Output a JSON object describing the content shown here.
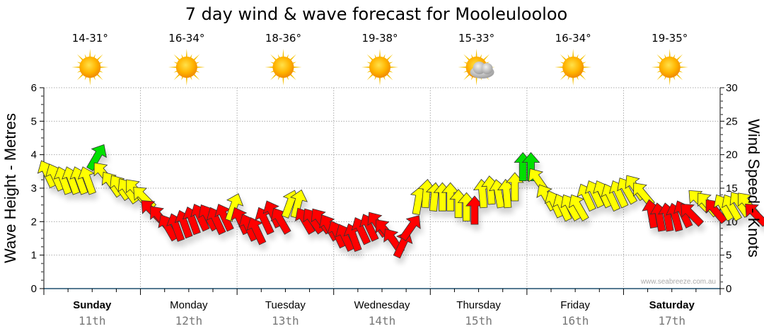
{
  "chart_data": {
    "type": "scatter",
    "title": "7 day wind & wave forecast for Mooleulooloo",
    "ylabel": "Wave Height - Metres",
    "y2label": "Wind Speed - Knots",
    "ylim": [
      0,
      6
    ],
    "y2lim": [
      0,
      30
    ],
    "yticks": [
      "0",
      "1",
      "2",
      "3",
      "4",
      "5",
      "6"
    ],
    "y2ticks": [
      "0",
      "5",
      "10",
      "15",
      "20",
      "25",
      "30"
    ],
    "grid": true,
    "credit": "www.seabreeze.com.au",
    "days": [
      {
        "day": "Sunday",
        "date": "11th",
        "temp": "14-31°",
        "icon": "sun-icon",
        "bold": true
      },
      {
        "day": "Monday",
        "date": "12th",
        "temp": "16-34°",
        "icon": "sun-icon",
        "bold": false
      },
      {
        "day": "Tuesday",
        "date": "13th",
        "temp": "18-36°",
        "icon": "sun-icon",
        "bold": false
      },
      {
        "day": "Wednesday",
        "date": "14th",
        "temp": "19-38°",
        "icon": "sun-icon",
        "bold": false
      },
      {
        "day": "Thursday",
        "date": "15th",
        "temp": "15-33°",
        "icon": "partly-cloudy-icon",
        "bold": false
      },
      {
        "day": "Friday",
        "date": "16th",
        "temp": "16-34°",
        "icon": "sun-icon",
        "bold": false
      },
      {
        "day": "Saturday",
        "date": "17th",
        "temp": "19-35°",
        "icon": "sun-icon",
        "bold": true
      }
    ],
    "series": [
      {
        "name": "Wind Speed (knots)",
        "x_unit": "hours from Sunday 00:00",
        "points": [
          {
            "x": 0,
            "kn": 17,
            "dir": -25
          },
          {
            "x": 2,
            "kn": 16.5,
            "dir": -25
          },
          {
            "x": 4,
            "kn": 16,
            "dir": -20
          },
          {
            "x": 6,
            "kn": 16,
            "dir": -20
          },
          {
            "x": 8,
            "kn": 16,
            "dir": -20
          },
          {
            "x": 10,
            "kn": 16,
            "dir": -20
          },
          {
            "x": 12,
            "kn": 19.5,
            "dir": 30
          },
          {
            "x": 14,
            "kn": 17,
            "dir": -40
          },
          {
            "x": 16,
            "kn": 15.5,
            "dir": -35
          },
          {
            "x": 18,
            "kn": 15,
            "dir": -35
          },
          {
            "x": 20,
            "kn": 14.5,
            "dir": -35
          },
          {
            "x": 22,
            "kn": 14.5,
            "dir": -40
          },
          {
            "x": 24,
            "kn": 13.5,
            "dir": -45
          },
          {
            "x": 26,
            "kn": 11.5,
            "dir": -45
          },
          {
            "x": 28,
            "kn": 10.5,
            "dir": -40
          },
          {
            "x": 30,
            "kn": 9,
            "dir": -30
          },
          {
            "x": 32,
            "kn": 9,
            "dir": -20
          },
          {
            "x": 34,
            "kn": 9.5,
            "dir": -20
          },
          {
            "x": 36,
            "kn": 10,
            "dir": -20
          },
          {
            "x": 38,
            "kn": 10.5,
            "dir": -25
          },
          {
            "x": 40,
            "kn": 10.5,
            "dir": -30
          },
          {
            "x": 42,
            "kn": 10,
            "dir": -25
          },
          {
            "x": 44,
            "kn": 10.5,
            "dir": -25
          },
          {
            "x": 46,
            "kn": 12,
            "dir": 20
          },
          {
            "x": 48,
            "kn": 10,
            "dir": -25
          },
          {
            "x": 50,
            "kn": 9,
            "dir": -25
          },
          {
            "x": 52,
            "kn": 8.5,
            "dir": -25
          },
          {
            "x": 54,
            "kn": 10,
            "dir": -25
          },
          {
            "x": 56,
            "kn": 11,
            "dir": -25
          },
          {
            "x": 58,
            "kn": 10,
            "dir": -30
          },
          {
            "x": 60,
            "kn": 12.5,
            "dir": 20
          },
          {
            "x": 62,
            "kn": 12.5,
            "dir": 15
          },
          {
            "x": 64,
            "kn": 10,
            "dir": -30
          },
          {
            "x": 66,
            "kn": 10,
            "dir": -35
          },
          {
            "x": 68,
            "kn": 10,
            "dir": -35
          },
          {
            "x": 70,
            "kn": 9,
            "dir": -30
          },
          {
            "x": 72,
            "kn": 8,
            "dir": -25
          },
          {
            "x": 74,
            "kn": 7.5,
            "dir": -25
          },
          {
            "x": 76,
            "kn": 7.5,
            "dir": -20
          },
          {
            "x": 78,
            "kn": 8.5,
            "dir": -25
          },
          {
            "x": 80,
            "kn": 9,
            "dir": -25
          },
          {
            "x": 82,
            "kn": 9.5,
            "dir": -35
          },
          {
            "x": 84,
            "kn": 8.5,
            "dir": -40
          },
          {
            "x": 86,
            "kn": 7,
            "dir": -35
          },
          {
            "x": 88,
            "kn": 6.5,
            "dir": 25
          },
          {
            "x": 90,
            "kn": 9,
            "dir": 35
          },
          {
            "x": 92,
            "kn": 13,
            "dir": 10
          },
          {
            "x": 94,
            "kn": 14,
            "dir": 5
          },
          {
            "x": 96,
            "kn": 13.5,
            "dir": 5
          },
          {
            "x": 98,
            "kn": 13.5,
            "dir": 0
          },
          {
            "x": 100,
            "kn": 13.5,
            "dir": 0
          },
          {
            "x": 102,
            "kn": 12.5,
            "dir": 0
          },
          {
            "x": 104,
            "kn": 12,
            "dir": 0
          },
          {
            "x": 106,
            "kn": 11.5,
            "dir": 0
          },
          {
            "x": 108,
            "kn": 14,
            "dir": -5
          },
          {
            "x": 110,
            "kn": 14.5,
            "dir": -5
          },
          {
            "x": 112,
            "kn": 14,
            "dir": -10
          },
          {
            "x": 114,
            "kn": 14,
            "dir": -5
          },
          {
            "x": 116,
            "kn": 15,
            "dir": 0
          },
          {
            "x": 118,
            "kn": 18,
            "dir": 0
          },
          {
            "x": 120,
            "kn": 18,
            "dir": 0
          },
          {
            "x": 122,
            "kn": 16,
            "dir": -35
          },
          {
            "x": 124,
            "kn": 13.5,
            "dir": -30
          },
          {
            "x": 126,
            "kn": 12.5,
            "dir": -25
          },
          {
            "x": 128,
            "kn": 12,
            "dir": -25
          },
          {
            "x": 130,
            "kn": 12,
            "dir": -30
          },
          {
            "x": 132,
            "kn": 12,
            "dir": -30
          },
          {
            "x": 134,
            "kn": 13.5,
            "dir": -25
          },
          {
            "x": 136,
            "kn": 14,
            "dir": -25
          },
          {
            "x": 138,
            "kn": 14,
            "dir": -25
          },
          {
            "x": 140,
            "kn": 13.5,
            "dir": -25
          },
          {
            "x": 142,
            "kn": 14,
            "dir": -25
          },
          {
            "x": 144,
            "kn": 14.5,
            "dir": -30
          },
          {
            "x": 146,
            "kn": 15,
            "dir": -35
          },
          {
            "x": 148,
            "kn": 14,
            "dir": -40
          },
          {
            "x": 150,
            "kn": 11,
            "dir": -10
          },
          {
            "x": 152,
            "kn": 10.5,
            "dir": -10
          },
          {
            "x": 154,
            "kn": 10.5,
            "dir": -10
          },
          {
            "x": 156,
            "kn": 10.5,
            "dir": -15
          },
          {
            "x": 158,
            "kn": 11,
            "dir": -25
          },
          {
            "x": 160,
            "kn": 11,
            "dir": -45
          },
          {
            "x": 162,
            "kn": 13,
            "dir": -45
          },
          {
            "x": 164,
            "kn": 12.5,
            "dir": -40
          },
          {
            "x": 166,
            "kn": 11.5,
            "dir": -40
          },
          {
            "x": 168,
            "kn": 12,
            "dir": -30
          },
          {
            "x": 170,
            "kn": 12,
            "dir": -30
          },
          {
            "x": 172,
            "kn": 12.5,
            "dir": -35
          },
          {
            "x": 174,
            "kn": 12.5,
            "dir": -40
          },
          {
            "x": 176,
            "kn": 11,
            "dir": -45
          }
        ]
      }
    ],
    "color_scale": {
      "low": "#ff0000",
      "mid": "#ffff00",
      "high": "#00e000"
    },
    "color_thresholds_kn": [
      12,
      18
    ]
  }
}
